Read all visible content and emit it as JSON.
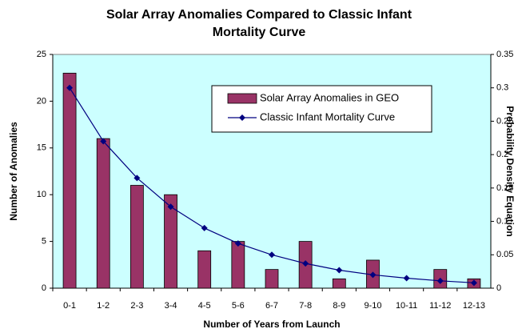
{
  "chart_data": {
    "type": "bar",
    "title": "Solar Array Anomalies Compared to Classic Infant Mortality Curve",
    "xlabel": "Number of Years from Launch",
    "ylabel": "Number of Anomalies",
    "y2label": "Probability Density Equation",
    "categories": [
      "0-1",
      "1-2",
      "2-3",
      "3-4",
      "4-5",
      "5-6",
      "6-7",
      "7-8",
      "8-9",
      "9-10",
      "10-11",
      "11-12",
      "12-13"
    ],
    "series": [
      {
        "name": "Solar Array Anomalies in GEO",
        "type": "bar",
        "color": "#993366",
        "values": [
          23,
          16,
          11,
          10,
          4,
          5,
          2,
          5,
          1,
          3,
          0,
          2,
          1
        ]
      },
      {
        "name": "Classic Infant Mortality Curve",
        "type": "line",
        "color": "#000080",
        "axis": "y2",
        "values": [
          0.3,
          0.22,
          0.165,
          0.122,
          0.09,
          0.067,
          0.05,
          0.037,
          0.027,
          0.02,
          0.015,
          0.011,
          0.008
        ]
      }
    ],
    "ylim": [
      0,
      25
    ],
    "yticks": [
      0,
      5,
      10,
      15,
      20,
      25
    ],
    "y2lim": [
      0,
      0.35
    ],
    "y2ticks": [
      0,
      0.05,
      0.1,
      0.15,
      0.2,
      0.25,
      0.3,
      0.35
    ],
    "grid": false,
    "legend": "upper right",
    "background": "#ccffff"
  }
}
